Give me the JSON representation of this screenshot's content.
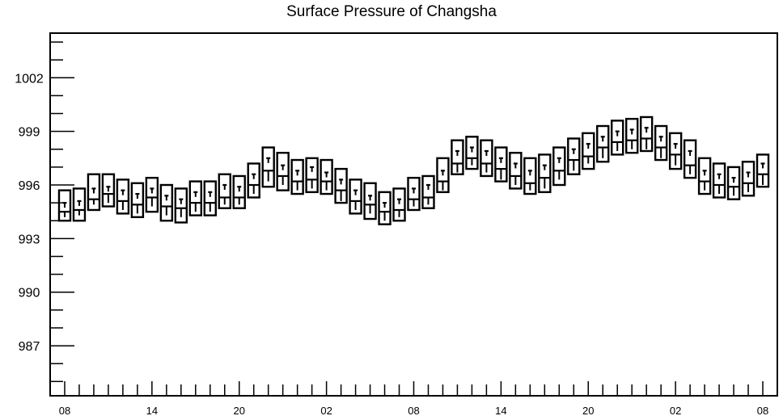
{
  "chart_data": {
    "type": "box",
    "title": "Surface Pressure of Changsha",
    "xlabel": "",
    "ylabel": "",
    "ylim": [
      984.2,
      1004.5
    ],
    "y_ticks": [
      987,
      990,
      993,
      996,
      999,
      1002
    ],
    "y_tick_labels": [
      "987",
      "990",
      "993",
      "996",
      "999",
      "1002"
    ],
    "x_tick_labels": [
      "08",
      "14",
      "20",
      "02",
      "08",
      "14",
      "20",
      "02",
      "08"
    ],
    "x_label_hours": [
      0,
      6,
      12,
      18,
      24,
      30,
      36,
      42,
      48
    ],
    "x_range_hours": [
      -1,
      49
    ],
    "grid": false,
    "series": [
      {
        "hours": [
          0,
          1,
          2,
          3,
          4,
          5,
          6,
          7,
          8,
          9,
          10,
          11,
          12,
          13,
          14,
          15,
          16,
          17,
          18,
          19,
          20,
          21,
          22,
          23,
          24,
          25,
          26,
          27,
          28,
          29,
          30,
          31,
          32,
          33,
          34,
          35,
          36,
          37,
          38,
          39,
          40,
          41,
          42,
          43,
          44,
          45,
          46,
          47,
          48
        ],
        "max": [
          995.7,
          995.8,
          996.6,
          996.6,
          996.3,
          996.1,
          996.4,
          996.0,
          995.8,
          996.2,
          996.2,
          996.6,
          996.5,
          997.2,
          998.1,
          997.8,
          997.4,
          997.5,
          997.4,
          996.9,
          996.3,
          996.1,
          995.6,
          995.8,
          996.4,
          996.5,
          997.5,
          998.5,
          998.7,
          998.5,
          998.1,
          997.8,
          997.5,
          997.7,
          998.1,
          998.6,
          998.9,
          999.3,
          999.6,
          999.7,
          999.8,
          999.3,
          998.9,
          998.5,
          997.5,
          997.2,
          997.0,
          997.3,
          997.7
        ],
        "q3": [
          995.0,
          995.1,
          995.8,
          995.9,
          995.7,
          995.5,
          995.8,
          995.4,
          995.2,
          995.6,
          995.6,
          996.0,
          995.9,
          996.6,
          997.5,
          997.1,
          996.8,
          997.0,
          996.7,
          996.3,
          995.7,
          995.4,
          995.0,
          995.2,
          995.8,
          996.0,
          996.8,
          997.9,
          998.1,
          997.9,
          997.5,
          997.2,
          996.8,
          997.1,
          997.5,
          998.0,
          998.3,
          998.7,
          999.0,
          999.1,
          999.2,
          998.7,
          998.3,
          997.9,
          996.8,
          996.6,
          996.4,
          996.7,
          997.2
        ],
        "median": [
          994.5,
          994.6,
          995.2,
          995.5,
          995.1,
          994.9,
          995.3,
          994.8,
          994.7,
          995.0,
          995.0,
          995.3,
          995.3,
          996.0,
          996.8,
          996.5,
          996.2,
          996.3,
          996.2,
          995.7,
          995.1,
          994.9,
          994.5,
          994.6,
          995.2,
          995.3,
          996.2,
          997.2,
          997.5,
          997.2,
          996.9,
          996.5,
          996.1,
          996.4,
          996.8,
          997.4,
          997.6,
          998.1,
          998.4,
          998.5,
          998.6,
          998.1,
          997.7,
          997.1,
          996.2,
          996.0,
          995.9,
          996.1,
          996.6
        ],
        "q1": [
          994.2,
          994.3,
          994.9,
          995.0,
          994.6,
          994.4,
          994.8,
          994.3,
          994.2,
          994.5,
          994.5,
          994.9,
          994.9,
          995.5,
          996.2,
          996.0,
          995.7,
          995.8,
          995.7,
          995.1,
          994.6,
          994.4,
          994.0,
          994.2,
          994.8,
          994.9,
          995.7,
          996.7,
          997.1,
          996.7,
          996.3,
          996.0,
          995.7,
          995.8,
          996.3,
          996.8,
          997.2,
          997.5,
          997.9,
          998.0,
          998.0,
          997.5,
          997.1,
          996.6,
          995.7,
          995.5,
          995.4,
          995.6,
          996.0
        ],
        "min": [
          994.0,
          994.0,
          994.6,
          994.8,
          994.4,
          994.2,
          994.5,
          994.0,
          993.9,
          994.3,
          994.3,
          994.7,
          994.7,
          995.3,
          995.9,
          995.7,
          995.5,
          995.6,
          995.5,
          995.0,
          994.4,
          994.1,
          993.8,
          994.0,
          994.6,
          994.7,
          995.6,
          996.6,
          996.9,
          996.5,
          996.2,
          995.8,
          995.5,
          995.6,
          996.0,
          996.6,
          996.9,
          997.3,
          997.7,
          997.8,
          997.9,
          997.4,
          996.9,
          996.4,
          995.5,
          995.3,
          995.2,
          995.4,
          995.9
        ]
      }
    ]
  }
}
